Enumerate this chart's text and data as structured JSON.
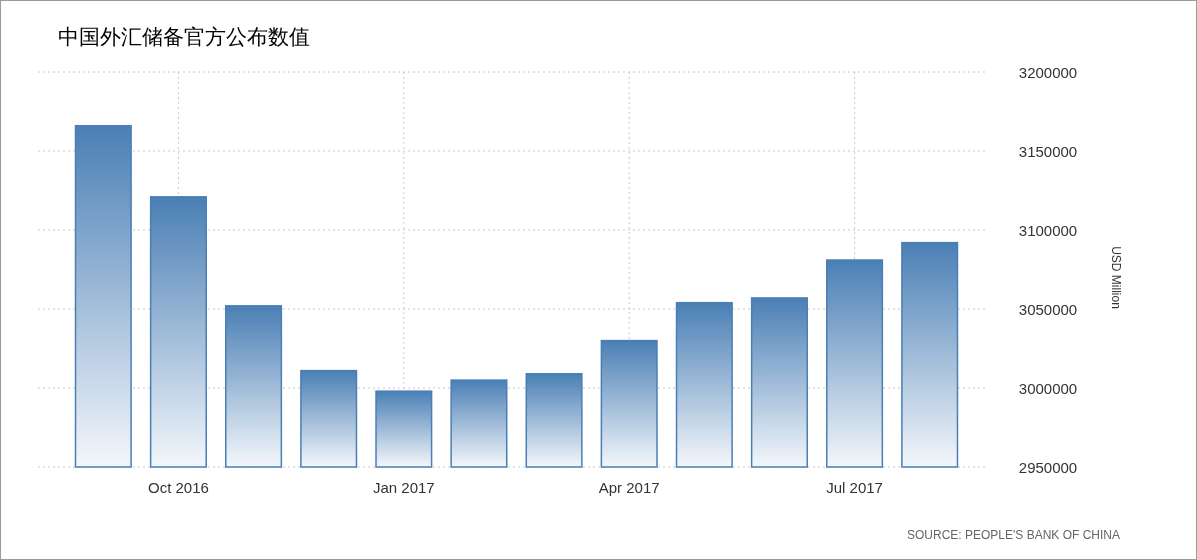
{
  "chart_data": {
    "type": "bar",
    "title": "中国外汇储备官方公布数值",
    "ylabel": "USD Million",
    "categories": [
      null,
      "Oct 2016",
      null,
      null,
      "Jan 2017",
      null,
      null,
      "Apr 2017",
      null,
      null,
      "Jul 2017",
      null
    ],
    "values": [
      3166000,
      3121000,
      3052000,
      3011000,
      2998000,
      3005000,
      3009000,
      3030000,
      3054000,
      3057000,
      3081000,
      3092000
    ],
    "color": "#4a7fb5",
    "ylim": [
      2950000,
      3200000
    ],
    "yticks": [
      2950000,
      3000000,
      3050000,
      3100000,
      3150000,
      3200000
    ],
    "grid": true,
    "annotations": [
      "SOURCE: PEOPLE'S BANK OF CHINA"
    ]
  }
}
